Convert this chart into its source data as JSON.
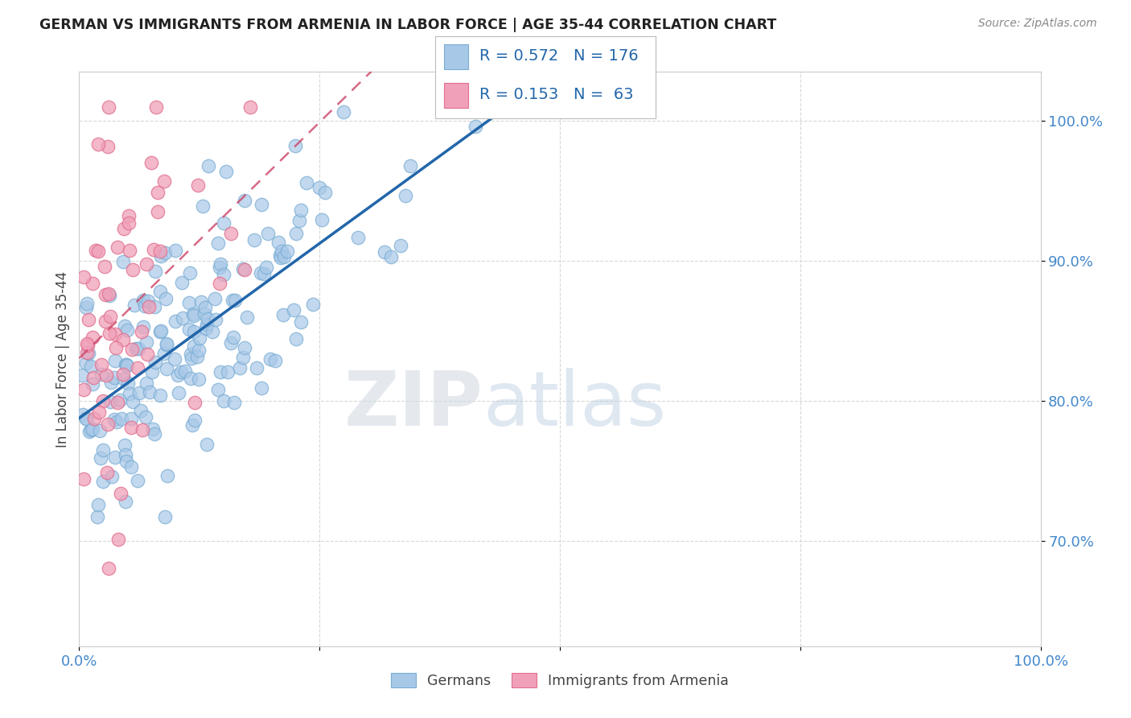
{
  "title": "GERMAN VS IMMIGRANTS FROM ARMENIA IN LABOR FORCE | AGE 35-44 CORRELATION CHART",
  "source": "Source: ZipAtlas.com",
  "ylabel": "In Labor Force | Age 35-44",
  "xlim": [
    0.0,
    1.0
  ],
  "ylim": [
    0.625,
    1.035
  ],
  "yticks": [
    0.7,
    0.8,
    0.9,
    1.0
  ],
  "ytick_labels": [
    "70.0%",
    "80.0%",
    "90.0%",
    "100.0%"
  ],
  "xticks": [
    0.0,
    0.25,
    0.5,
    0.75,
    1.0
  ],
  "xtick_labels": [
    "0.0%",
    "",
    "",
    "",
    "100.0%"
  ],
  "blue_R": 0.572,
  "blue_N": 176,
  "pink_R": 0.153,
  "pink_N": 63,
  "legend_labels": [
    "Germans",
    "Immigrants from Armenia"
  ],
  "blue_color": "#a8c8e8",
  "pink_color": "#f0a0b8",
  "blue_edge_color": "#7aadd4",
  "pink_edge_color": "#e07090",
  "blue_line_color": "#2266aa",
  "pink_line_color": "#cc4466",
  "watermark_zip": "ZIP",
  "watermark_atlas": "atlas",
  "background_color": "#ffffff",
  "grid_color": "#d8d8d8",
  "title_color": "#222222",
  "axis_label_color": "#444444",
  "tick_label_color": "#4488cc",
  "legend_R_N_color": "#2266aa",
  "source_color": "#888888"
}
